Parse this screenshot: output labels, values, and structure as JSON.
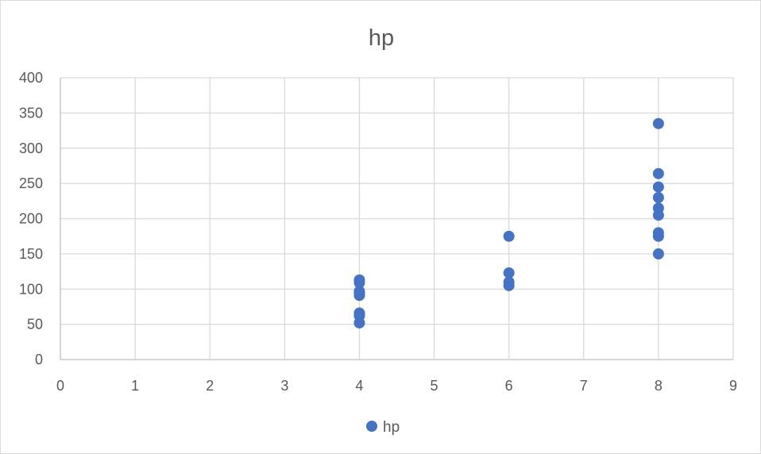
{
  "chart_data": {
    "type": "scatter",
    "title": "hp",
    "xlabel": "",
    "ylabel": "",
    "xlim": [
      0,
      9
    ],
    "ylim": [
      0,
      400
    ],
    "x_ticks": [
      "0",
      "1",
      "2",
      "3",
      "4",
      "5",
      "6",
      "7",
      "8",
      "9"
    ],
    "y_ticks": [
      "0",
      "50",
      "100",
      "150",
      "200",
      "250",
      "300",
      "350",
      "400"
    ],
    "grid": true,
    "legend_position": "bottom",
    "series": [
      {
        "name": "hp",
        "color": "#4472c4",
        "points": [
          {
            "x": 4,
            "y": 52
          },
          {
            "x": 4,
            "y": 62
          },
          {
            "x": 4,
            "y": 65
          },
          {
            "x": 4,
            "y": 66
          },
          {
            "x": 4,
            "y": 91
          },
          {
            "x": 4,
            "y": 93
          },
          {
            "x": 4,
            "y": 95
          },
          {
            "x": 4,
            "y": 97
          },
          {
            "x": 4,
            "y": 109
          },
          {
            "x": 4,
            "y": 113
          },
          {
            "x": 6,
            "y": 105
          },
          {
            "x": 6,
            "y": 110
          },
          {
            "x": 6,
            "y": 123
          },
          {
            "x": 6,
            "y": 175
          },
          {
            "x": 8,
            "y": 150
          },
          {
            "x": 8,
            "y": 175
          },
          {
            "x": 8,
            "y": 180
          },
          {
            "x": 8,
            "y": 205
          },
          {
            "x": 8,
            "y": 215
          },
          {
            "x": 8,
            "y": 230
          },
          {
            "x": 8,
            "y": 245
          },
          {
            "x": 8,
            "y": 264
          },
          {
            "x": 8,
            "y": 335
          }
        ]
      }
    ]
  }
}
